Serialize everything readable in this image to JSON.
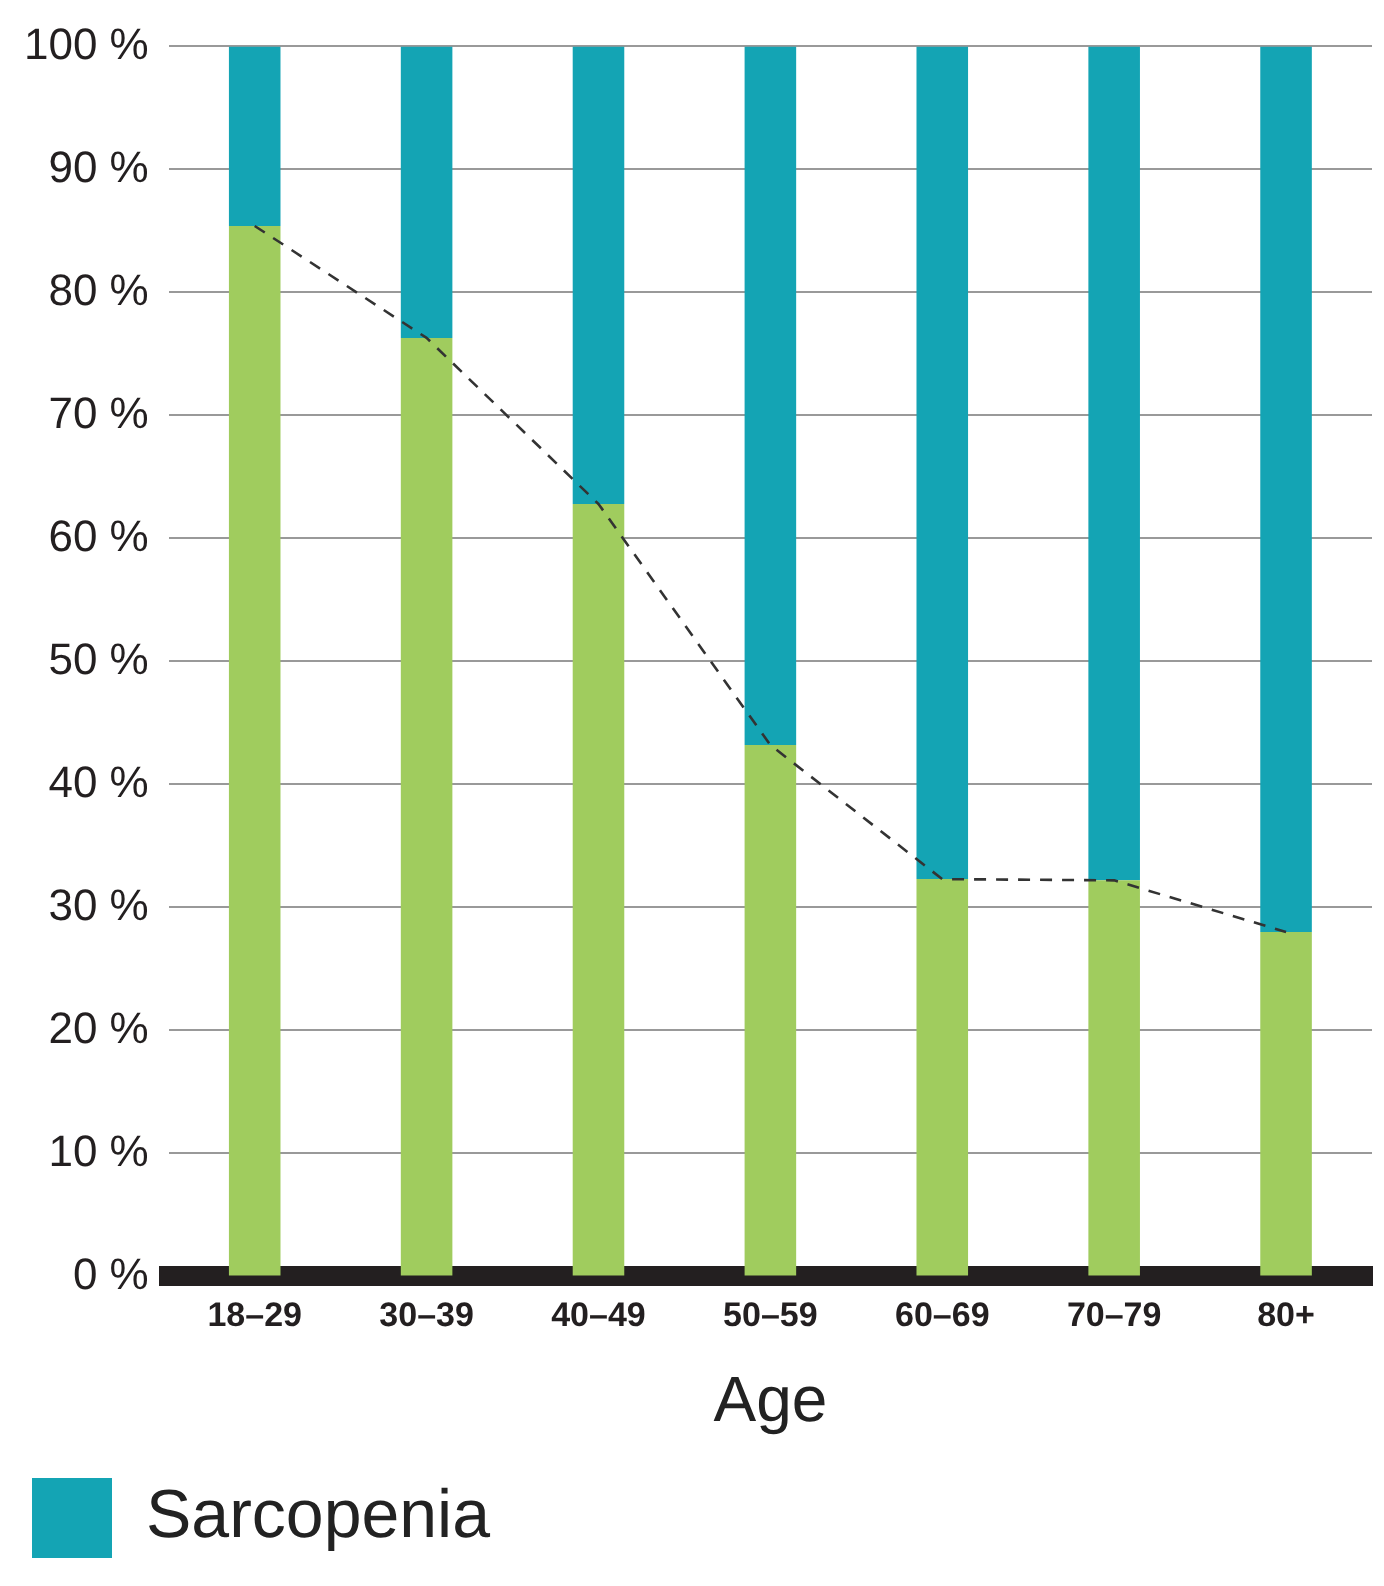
{
  "chart_data": {
    "type": "bar",
    "stacked": true,
    "xlabel": "Age",
    "categories": [
      "18–29",
      "30–39",
      "40–49",
      "50–59",
      "60–69",
      "70–79",
      "80+"
    ],
    "series": [
      {
        "color": "#a0cc5e",
        "values": [
          85.4,
          76.3,
          62.8,
          43.2,
          32.3,
          32.2,
          28.0
        ]
      },
      {
        "name": "Sarcopenia",
        "color": "#14a4b4",
        "values": [
          14.6,
          23.7,
          37.2,
          56.8,
          67.7,
          67.8,
          72.0
        ]
      },
      {
        "type": "line",
        "color": "#333333",
        "line_style": "dashed",
        "marker": "none",
        "values": [
          85.4,
          76.3,
          62.8,
          43.2,
          32.3,
          32.2,
          28.0
        ]
      }
    ],
    "ylim": [
      0,
      100
    ],
    "yticks": [
      {
        "value": 0,
        "label": "0 %"
      },
      {
        "value": 10,
        "label": "10 %"
      },
      {
        "value": 20,
        "label": "20 %"
      },
      {
        "value": 30,
        "label": "30 %"
      },
      {
        "value": 40,
        "label": "40 %"
      },
      {
        "value": 50,
        "label": "50 %"
      },
      {
        "value": 60,
        "label": "60 %"
      },
      {
        "value": 70,
        "label": "70 %"
      },
      {
        "value": 80,
        "label": "80 %"
      },
      {
        "value": 90,
        "label": "90 %"
      },
      {
        "value": 100,
        "label": "100 %"
      }
    ],
    "grid": "y",
    "legend": "bottom left"
  }
}
